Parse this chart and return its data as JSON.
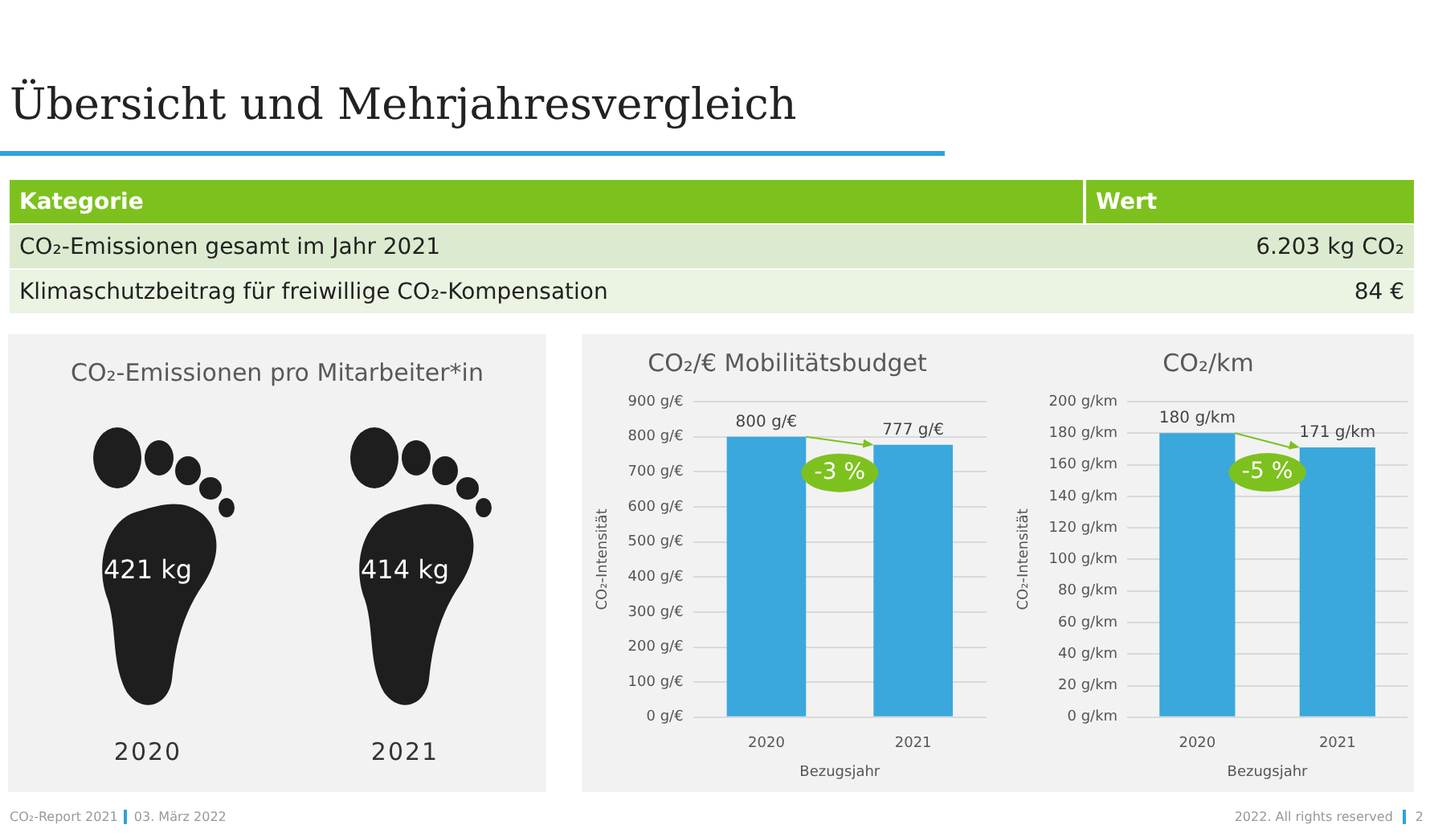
{
  "chart_data": [
    {
      "type": "other",
      "title": "Übersicht und Mehrjahresvergleich",
      "categories": [
        "CO₂-Emissionen gesamt im Jahr 2021",
        "Klimaschutzbeitrag für freiwillige CO₂-Kompensation"
      ],
      "value_labels": [
        "6.203 kg CO₂",
        "84 €"
      ],
      "annotations": [
        "Kategorie",
        "Wert",
        "CO₂-Report 2021",
        "03. März 2022",
        "2022. All rights reserved",
        "2"
      ]
    },
    {
      "type": "other",
      "title": "CO₂-Emissionen pro Mitarbeiter*in",
      "categories": [
        "2020",
        "2021"
      ],
      "value_labels": [
        "421 kg",
        "414 kg"
      ]
    },
    {
      "type": "bar",
      "title": "CO₂/€ Mobilitätsbudget",
      "xlabel": "Bezugsjahr",
      "ylabel": "CO₂-Intensität",
      "categories": [
        "2020",
        "2021"
      ],
      "values": [
        800,
        777
      ],
      "value_labels": [
        "800 g/€",
        "777 g/€"
      ],
      "color": "#3aa8dc",
      "ylim": [
        0,
        900
      ],
      "yticks": [
        {
          "value": 0,
          "label": "0 g/€"
        },
        {
          "value": 100,
          "label": "100 g/€"
        },
        {
          "value": 200,
          "label": "200 g/€"
        },
        {
          "value": 300,
          "label": "300 g/€"
        },
        {
          "value": 400,
          "label": "400 g/€"
        },
        {
          "value": 500,
          "label": "500 g/€"
        },
        {
          "value": 600,
          "label": "600 g/€"
        },
        {
          "value": 700,
          "label": "700 g/€"
        },
        {
          "value": 800,
          "label": "800 g/€"
        },
        {
          "value": 900,
          "label": "900 g/€"
        }
      ],
      "grid": "y",
      "annotations": [
        "-3 %"
      ]
    },
    {
      "type": "bar",
      "title": "CO₂/km",
      "xlabel": "Bezugsjahr",
      "ylabel": "CO₂-Intensität",
      "categories": [
        "2020",
        "2021"
      ],
      "values": [
        180,
        171
      ],
      "value_labels": [
        "180 g/km",
        "171 g/km"
      ],
      "color": "#3aa8dc",
      "ylim": [
        0,
        200
      ],
      "yticks": [
        {
          "value": 0,
          "label": "0 g/km"
        },
        {
          "value": 20,
          "label": "20 g/km"
        },
        {
          "value": 40,
          "label": "40 g/km"
        },
        {
          "value": 60,
          "label": "60 g/km"
        },
        {
          "value": 80,
          "label": "80 g/km"
        },
        {
          "value": 100,
          "label": "100 g/km"
        },
        {
          "value": 120,
          "label": "120 g/km"
        },
        {
          "value": 140,
          "label": "140 g/km"
        },
        {
          "value": 160,
          "label": "160 g/km"
        },
        {
          "value": 180,
          "label": "180 g/km"
        },
        {
          "value": 200,
          "label": "200 g/km"
        }
      ],
      "grid": "y",
      "annotations": [
        "-5 %"
      ]
    }
  ]
}
